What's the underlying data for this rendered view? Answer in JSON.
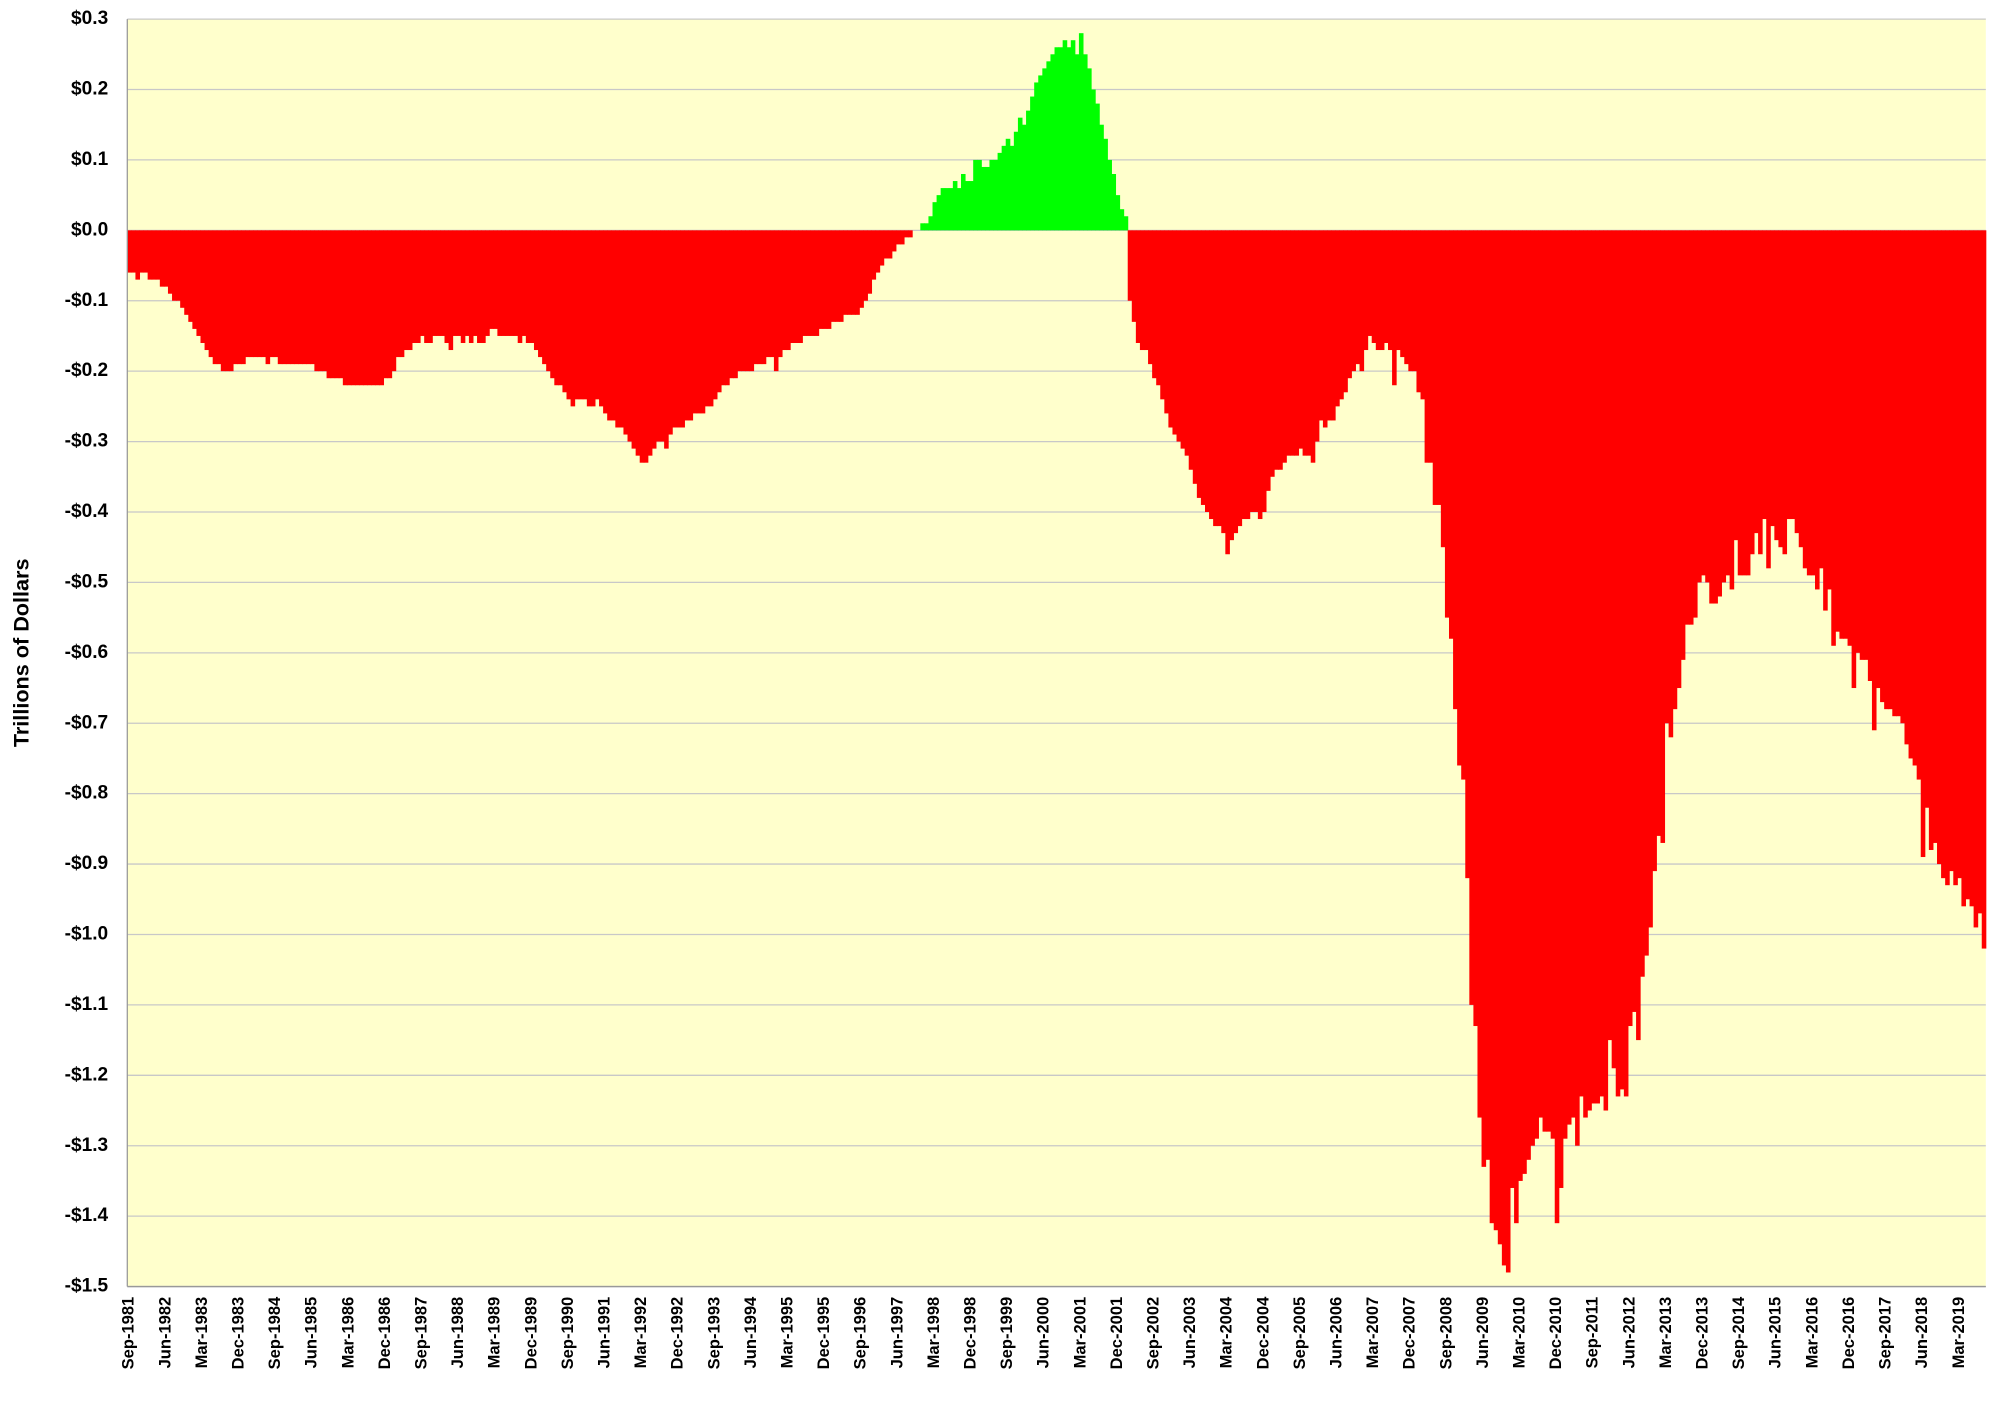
{
  "chart_data": {
    "type": "bar",
    "y_label": "Trillions of Dollars",
    "positive_color": "#00ff00",
    "negative_color": "#ff0000",
    "plot_background": "#ffffcc",
    "grid": true,
    "ylim": [
      -1.5,
      0.3
    ],
    "yticks": [
      {
        "value": 0.3,
        "label": "$0.3"
      },
      {
        "value": 0.2,
        "label": "$0.2"
      },
      {
        "value": 0.1,
        "label": "$0.1"
      },
      {
        "value": 0,
        "label": "$0.0"
      },
      {
        "value": -0.1,
        "label": "-$0.1"
      },
      {
        "value": -0.2,
        "label": "-$0.2"
      },
      {
        "value": -0.3,
        "label": "-$0.3"
      },
      {
        "value": -0.4,
        "label": "-$0.4"
      },
      {
        "value": -0.5,
        "label": "-$0.5"
      },
      {
        "value": -0.6,
        "label": "-$0.6"
      },
      {
        "value": -0.7,
        "label": "-$0.7"
      },
      {
        "value": -0.8,
        "label": "-$0.8"
      },
      {
        "value": -0.9,
        "label": "-$0.9"
      },
      {
        "value": -1.0,
        "label": "-$1.0"
      },
      {
        "value": -1.1,
        "label": "-$1.1"
      },
      {
        "value": -1.2,
        "label": "-$1.2"
      },
      {
        "value": -1.3,
        "label": "-$1.3"
      },
      {
        "value": -1.4,
        "label": "-$1.4"
      },
      {
        "value": -1.5,
        "label": "-$1.5"
      }
    ],
    "categories": [
      "Sep-1981",
      null,
      null,
      null,
      null,
      null,
      null,
      null,
      null,
      "Jun-1982",
      null,
      null,
      null,
      null,
      null,
      null,
      null,
      null,
      "Mar-1983",
      null,
      null,
      null,
      null,
      null,
      null,
      null,
      null,
      "Dec-1983",
      null,
      null,
      null,
      null,
      null,
      null,
      null,
      null,
      "Sep-1984",
      null,
      null,
      null,
      null,
      null,
      null,
      null,
      null,
      "Jun-1985",
      null,
      null,
      null,
      null,
      null,
      null,
      null,
      null,
      "Mar-1986",
      null,
      null,
      null,
      null,
      null,
      null,
      null,
      null,
      "Dec-1986",
      null,
      null,
      null,
      null,
      null,
      null,
      null,
      null,
      "Sep-1987",
      null,
      null,
      null,
      null,
      null,
      null,
      null,
      null,
      "Jun-1988",
      null,
      null,
      null,
      null,
      null,
      null,
      null,
      null,
      "Mar-1989",
      null,
      null,
      null,
      null,
      null,
      null,
      null,
      null,
      "Dec-1989",
      null,
      null,
      null,
      null,
      null,
      null,
      null,
      null,
      "Sep-1990",
      null,
      null,
      null,
      null,
      null,
      null,
      null,
      null,
      "Jun-1991",
      null,
      null,
      null,
      null,
      null,
      null,
      null,
      null,
      "Mar-1992",
      null,
      null,
      null,
      null,
      null,
      null,
      null,
      null,
      "Dec-1992",
      null,
      null,
      null,
      null,
      null,
      null,
      null,
      null,
      "Sep-1993",
      null,
      null,
      null,
      null,
      null,
      null,
      null,
      null,
      "Jun-1994",
      null,
      null,
      null,
      null,
      null,
      null,
      null,
      null,
      "Mar-1995",
      null,
      null,
      null,
      null,
      null,
      null,
      null,
      null,
      "Dec-1995",
      null,
      null,
      null,
      null,
      null,
      null,
      null,
      null,
      "Sep-1996",
      null,
      null,
      null,
      null,
      null,
      null,
      null,
      null,
      "Jun-1997",
      null,
      null,
      null,
      null,
      null,
      null,
      null,
      null,
      "Mar-1998",
      null,
      null,
      null,
      null,
      null,
      null,
      null,
      null,
      "Dec-1998",
      null,
      null,
      null,
      null,
      null,
      null,
      null,
      null,
      "Sep-1999",
      null,
      null,
      null,
      null,
      null,
      null,
      null,
      null,
      "Jun-2000",
      null,
      null,
      null,
      null,
      null,
      null,
      null,
      null,
      "Mar-2001",
      null,
      null,
      null,
      null,
      null,
      null,
      null,
      null,
      "Dec-2001",
      null,
      null,
      null,
      null,
      null,
      null,
      null,
      null,
      "Sep-2002",
      null,
      null,
      null,
      null,
      null,
      null,
      null,
      null,
      "Jun-2003",
      null,
      null,
      null,
      null,
      null,
      null,
      null,
      null,
      "Mar-2004",
      null,
      null,
      null,
      null,
      null,
      null,
      null,
      null,
      "Dec-2004",
      null,
      null,
      null,
      null,
      null,
      null,
      null,
      null,
      "Sep-2005",
      null,
      null,
      null,
      null,
      null,
      null,
      null,
      null,
      "Jun-2006",
      null,
      null,
      null,
      null,
      null,
      null,
      null,
      null,
      "Mar-2007",
      null,
      null,
      null,
      null,
      null,
      null,
      null,
      null,
      "Dec-2007",
      null,
      null,
      null,
      null,
      null,
      null,
      null,
      null,
      "Sep-2008",
      null,
      null,
      null,
      null,
      null,
      null,
      null,
      null,
      "Jun-2009",
      null,
      null,
      null,
      null,
      null,
      null,
      null,
      null,
      "Mar-2010",
      null,
      null,
      null,
      null,
      null,
      null,
      null,
      null,
      "Dec-2010",
      null,
      null,
      null,
      null,
      null,
      null,
      null,
      null,
      "Sep-2011",
      null,
      null,
      null,
      null,
      null,
      null,
      null,
      null,
      "Jun-2012",
      null,
      null,
      null,
      null,
      null,
      null,
      null,
      null,
      "Mar-2013",
      null,
      null,
      null,
      null,
      null,
      null,
      null,
      null,
      "Dec-2013",
      null,
      null,
      null,
      null,
      null,
      null,
      null,
      null,
      "Sep-2014",
      null,
      null,
      null,
      null,
      null,
      null,
      null,
      null,
      "Jun-2015",
      null,
      null,
      null,
      null,
      null,
      null,
      null,
      null,
      "Mar-2016",
      null,
      null,
      null,
      null,
      null,
      null,
      null,
      null,
      "Dec-2016",
      null,
      null,
      null,
      null,
      null,
      null,
      null,
      null,
      "Sep-2017",
      null,
      null,
      null,
      null,
      null,
      null,
      null,
      null,
      "Jun-2018",
      null,
      null,
      null,
      null,
      null,
      null,
      null,
      null,
      "Mar-2019",
      null,
      null,
      null,
      null,
      null,
      null
    ],
    "values": [
      -0.06,
      -0.06,
      -0.07,
      -0.06,
      -0.06,
      -0.07,
      -0.07,
      -0.07,
      -0.08,
      -0.08,
      -0.09,
      -0.1,
      -0.1,
      -0.11,
      -0.12,
      -0.13,
      -0.14,
      -0.15,
      -0.16,
      -0.17,
      -0.18,
      -0.19,
      -0.19,
      -0.2,
      -0.2,
      -0.2,
      -0.19,
      -0.19,
      -0.19,
      -0.18,
      -0.18,
      -0.18,
      -0.18,
      -0.18,
      -0.19,
      -0.18,
      -0.18,
      -0.19,
      -0.19,
      -0.19,
      -0.19,
      -0.19,
      -0.19,
      -0.19,
      -0.19,
      -0.19,
      -0.2,
      -0.2,
      -0.2,
      -0.21,
      -0.21,
      -0.21,
      -0.21,
      -0.22,
      -0.22,
      -0.22,
      -0.22,
      -0.22,
      -0.22,
      -0.22,
      -0.22,
      -0.22,
      -0.22,
      -0.21,
      -0.21,
      -0.2,
      -0.18,
      -0.18,
      -0.17,
      -0.17,
      -0.16,
      -0.16,
      -0.15,
      -0.16,
      -0.16,
      -0.15,
      -0.15,
      -0.15,
      -0.16,
      -0.17,
      -0.15,
      -0.15,
      -0.16,
      -0.15,
      -0.16,
      -0.15,
      -0.16,
      -0.16,
      -0.15,
      -0.14,
      -0.14,
      -0.15,
      -0.15,
      -0.15,
      -0.15,
      -0.15,
      -0.16,
      -0.15,
      -0.16,
      -0.16,
      -0.17,
      -0.18,
      -0.19,
      -0.2,
      -0.21,
      -0.22,
      -0.22,
      -0.23,
      -0.24,
      -0.25,
      -0.24,
      -0.24,
      -0.24,
      -0.25,
      -0.25,
      -0.24,
      -0.25,
      -0.26,
      -0.27,
      -0.27,
      -0.28,
      -0.28,
      -0.29,
      -0.3,
      -0.31,
      -0.32,
      -0.33,
      -0.33,
      -0.32,
      -0.31,
      -0.3,
      -0.3,
      -0.31,
      -0.29,
      -0.28,
      -0.28,
      -0.28,
      -0.27,
      -0.27,
      -0.26,
      -0.26,
      -0.26,
      -0.25,
      -0.25,
      -0.24,
      -0.23,
      -0.22,
      -0.22,
      -0.21,
      -0.21,
      -0.2,
      -0.2,
      -0.2,
      -0.2,
      -0.19,
      -0.19,
      -0.19,
      -0.18,
      -0.18,
      -0.2,
      -0.18,
      -0.17,
      -0.17,
      -0.16,
      -0.16,
      -0.16,
      -0.15,
      -0.15,
      -0.15,
      -0.15,
      -0.14,
      -0.14,
      -0.14,
      -0.13,
      -0.13,
      -0.13,
      -0.12,
      -0.12,
      -0.12,
      -0.12,
      -0.11,
      -0.1,
      -0.09,
      -0.07,
      -0.06,
      -0.05,
      -0.04,
      -0.04,
      -0.03,
      -0.02,
      -0.02,
      -0.01,
      -0.01,
      0.0,
      0.0,
      0.01,
      0.01,
      0.02,
      0.04,
      0.05,
      0.06,
      0.06,
      0.06,
      0.07,
      0.06,
      0.08,
      0.07,
      0.07,
      0.1,
      0.1,
      0.09,
      0.09,
      0.1,
      0.1,
      0.11,
      0.12,
      0.13,
      0.12,
      0.14,
      0.16,
      0.15,
      0.17,
      0.19,
      0.21,
      0.22,
      0.23,
      0.24,
      0.25,
      0.26,
      0.26,
      0.27,
      0.26,
      0.27,
      0.25,
      0.28,
      0.25,
      0.23,
      0.2,
      0.18,
      0.15,
      0.13,
      0.1,
      0.08,
      0.05,
      0.03,
      0.02,
      -0.1,
      -0.13,
      -0.16,
      -0.17,
      -0.17,
      -0.19,
      -0.21,
      -0.22,
      -0.24,
      -0.26,
      -0.28,
      -0.29,
      -0.3,
      -0.31,
      -0.32,
      -0.34,
      -0.36,
      -0.38,
      -0.39,
      -0.4,
      -0.41,
      -0.42,
      -0.42,
      -0.43,
      -0.46,
      -0.44,
      -0.43,
      -0.42,
      -0.41,
      -0.41,
      -0.4,
      -0.4,
      -0.41,
      -0.4,
      -0.37,
      -0.35,
      -0.34,
      -0.34,
      -0.33,
      -0.32,
      -0.32,
      -0.32,
      -0.31,
      -0.32,
      -0.32,
      -0.33,
      -0.3,
      -0.27,
      -0.28,
      -0.27,
      -0.27,
      -0.25,
      -0.24,
      -0.23,
      -0.21,
      -0.2,
      -0.19,
      -0.2,
      -0.17,
      -0.15,
      -0.16,
      -0.17,
      -0.17,
      -0.16,
      -0.17,
      -0.22,
      -0.17,
      -0.18,
      -0.19,
      -0.2,
      -0.2,
      -0.23,
      -0.24,
      -0.33,
      -0.33,
      -0.39,
      -0.39,
      -0.45,
      -0.55,
      -0.58,
      -0.68,
      -0.76,
      -0.78,
      -0.92,
      -1.1,
      -1.13,
      -1.26,
      -1.33,
      -1.32,
      -1.41,
      -1.42,
      -1.44,
      -1.47,
      -1.48,
      -1.36,
      -1.41,
      -1.35,
      -1.34,
      -1.32,
      -1.3,
      -1.29,
      -1.26,
      -1.28,
      -1.28,
      -1.29,
      -1.41,
      -1.36,
      -1.29,
      -1.27,
      -1.26,
      -1.3,
      -1.23,
      -1.26,
      -1.25,
      -1.24,
      -1.24,
      -1.23,
      -1.25,
      -1.15,
      -1.19,
      -1.23,
      -1.22,
      -1.23,
      -1.13,
      -1.11,
      -1.15,
      -1.06,
      -1.03,
      -0.99,
      -0.91,
      -0.86,
      -0.87,
      -0.7,
      -0.72,
      -0.68,
      -0.65,
      -0.61,
      -0.56,
      -0.56,
      -0.55,
      -0.5,
      -0.49,
      -0.5,
      -0.53,
      -0.53,
      -0.52,
      -0.5,
      -0.49,
      -0.51,
      -0.44,
      -0.49,
      -0.49,
      -0.49,
      -0.46,
      -0.43,
      -0.46,
      -0.41,
      -0.48,
      -0.42,
      -0.44,
      -0.45,
      -0.46,
      -0.41,
      -0.41,
      -0.43,
      -0.45,
      -0.48,
      -0.49,
      -0.49,
      -0.51,
      -0.48,
      -0.54,
      -0.51,
      -0.59,
      -0.57,
      -0.58,
      -0.58,
      -0.59,
      -0.65,
      -0.6,
      -0.61,
      -0.61,
      -0.64,
      -0.71,
      -0.65,
      -0.67,
      -0.68,
      -0.68,
      -0.69,
      -0.69,
      -0.7,
      -0.73,
      -0.75,
      -0.76,
      -0.78,
      -0.89,
      -0.82,
      -0.88,
      -0.87,
      -0.9,
      -0.92,
      -0.93,
      -0.91,
      -0.93,
      -0.92,
      -0.96,
      -0.95,
      -0.96,
      -0.99,
      -0.97,
      -1.02
    ]
  }
}
